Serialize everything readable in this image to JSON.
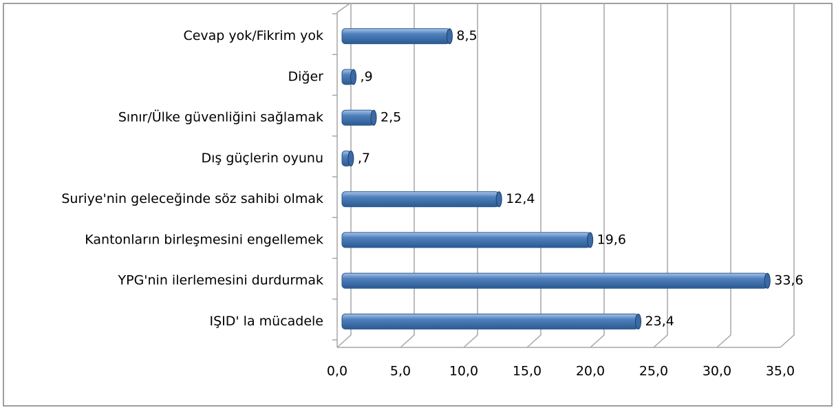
{
  "chart_data": {
    "type": "bar",
    "orientation": "horizontal",
    "color": "#4f81bd",
    "categories": [
      "Cevap yok/Fikrim yok",
      "Diğer",
      "Sınır/Ülke güvenliğini sağlamak",
      "Dış güçlerin oyunu",
      "Suriye'nin geleceğinde söz sahibi olmak",
      "Kantonların birleşmesini engellemek",
      "YPG'nin ilerlemesini durdurmak",
      "IŞID' la mücadele"
    ],
    "values": [
      8.5,
      0.9,
      2.5,
      0.7,
      12.4,
      19.6,
      33.6,
      23.4
    ],
    "value_labels": [
      "8,5",
      ",9",
      "2,5",
      ",7",
      "12,4",
      "19,6",
      "33,6",
      "23,4"
    ],
    "xlim": [
      0,
      35
    ],
    "xticks": [
      {
        "value": 0,
        "label": "0,0"
      },
      {
        "value": 5,
        "label": "5,0"
      },
      {
        "value": 10,
        "label": "10,0"
      },
      {
        "value": 15,
        "label": "15,0"
      },
      {
        "value": 20,
        "label": "20,0"
      },
      {
        "value": 25,
        "label": "25,0"
      },
      {
        "value": 30,
        "label": "30,0"
      },
      {
        "value": 35,
        "label": "35,0"
      }
    ],
    "grid": true
  }
}
